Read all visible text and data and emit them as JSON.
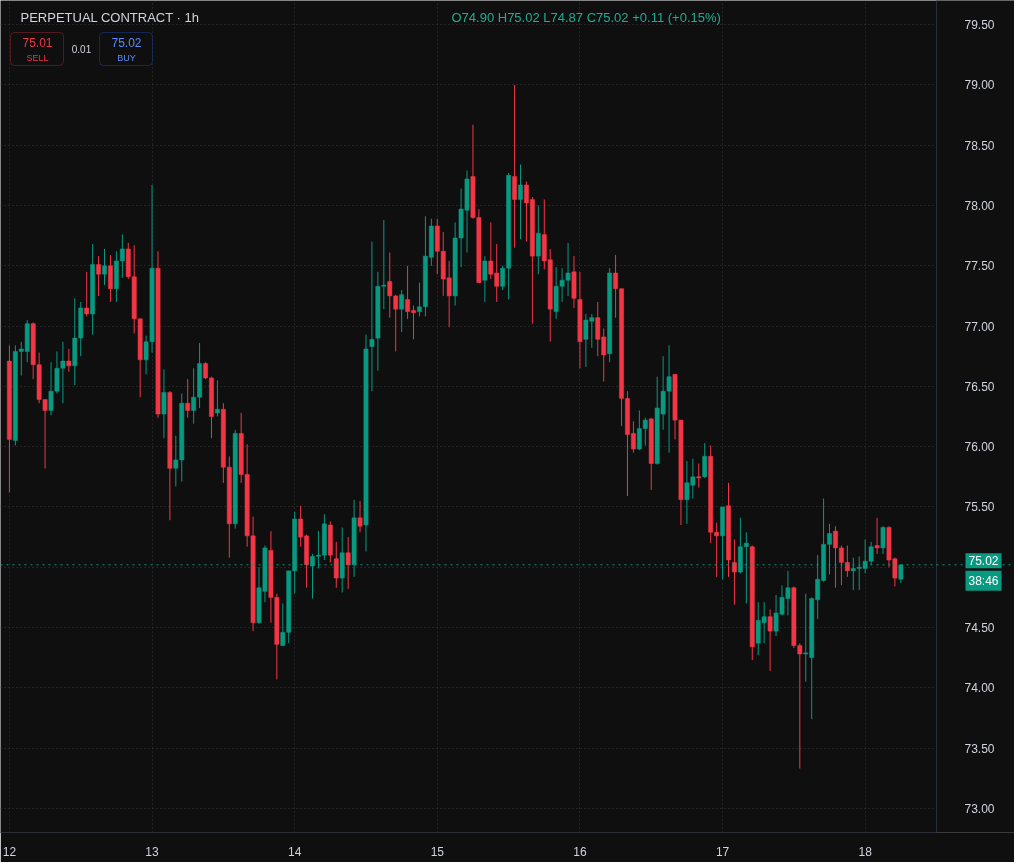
{
  "chart_data": {
    "type": "candlestick",
    "title": "PERPETUAL CONTRACT · 1h",
    "x": [
      12,
      12.0417,
      12.0833,
      12.125,
      12.1667,
      12.2083,
      12.25,
      12.2917,
      12.3333,
      12.375,
      12.4167,
      12.4583,
      12.5,
      12.5417,
      12.5833,
      12.625,
      12.6667,
      12.7083,
      12.75,
      12.7917,
      12.8333,
      12.875,
      12.9167,
      12.9583,
      13,
      13.0417,
      13.0833,
      13.125,
      13.1667,
      13.2083,
      13.25,
      13.2917,
      13.3333,
      13.375,
      13.4167,
      13.4583,
      13.5,
      13.5417,
      13.5833,
      13.625,
      13.6667,
      13.7083,
      13.75,
      13.7917,
      13.8333,
      13.875,
      13.9167,
      13.9583,
      14,
      14.0417,
      14.0833,
      14.125,
      14.1667,
      14.2083,
      14.25,
      14.2917,
      14.3333,
      14.375,
      14.4167,
      14.4583,
      14.5,
      14.5417,
      14.5833,
      14.625,
      14.6667,
      14.7083,
      14.75,
      14.7917,
      14.8333,
      14.875,
      14.9167,
      14.9583,
      15,
      15.0417,
      15.0833,
      15.125,
      15.1667,
      15.2083,
      15.25,
      15.2917,
      15.3333,
      15.375,
      15.4167,
      15.4583,
      15.5,
      15.5417,
      15.5833,
      15.625,
      15.6667,
      15.7083,
      15.75,
      15.7917,
      15.8333,
      15.875,
      15.9167,
      15.9583,
      16,
      16.0417,
      16.0833,
      16.125,
      16.1667,
      16.2083,
      16.25,
      16.2917,
      16.3333,
      16.375,
      16.4167,
      16.4583,
      16.5,
      16.5417,
      16.5833,
      16.625,
      16.6667,
      16.7083,
      16.75,
      16.7917,
      16.8333,
      16.875,
      16.9167,
      16.9583,
      17,
      17.0417,
      17.0833,
      17.125,
      17.1667,
      17.2083,
      17.25,
      17.2917,
      17.3333,
      17.375,
      17.4167,
      17.4583,
      17.5,
      17.5417,
      17.5833,
      17.625,
      17.6667,
      17.7083,
      17.75,
      17.7917,
      17.8333,
      17.875,
      17.9167,
      17.9583,
      18,
      18.0417,
      18.0833,
      18.125,
      18.1667,
      18.2083,
      18.25
    ],
    "ohlc": [
      [
        76.71,
        76.84,
        75.62,
        76.06
      ],
      [
        76.05,
        76.84,
        76.01,
        76.79
      ],
      [
        76.79,
        76.87,
        76.59,
        76.81
      ],
      [
        76.79,
        77.05,
        76.7,
        77.02
      ],
      [
        77.02,
        77.03,
        76.56,
        76.68
      ],
      [
        76.68,
        76.78,
        76.36,
        76.39
      ],
      [
        76.39,
        76.39,
        75.82,
        76.3
      ],
      [
        76.3,
        76.7,
        76.26,
        76.46
      ],
      [
        76.46,
        76.79,
        76.44,
        76.65
      ],
      [
        76.65,
        76.87,
        76.36,
        76.71
      ],
      [
        76.71,
        76.81,
        76.62,
        76.67
      ],
      [
        76.67,
        77.23,
        76.51,
        76.9
      ],
      [
        76.9,
        77.2,
        76.75,
        77.15
      ],
      [
        77.15,
        77.45,
        77.08,
        77.1
      ],
      [
        77.1,
        77.68,
        76.93,
        77.51
      ],
      [
        77.51,
        77.58,
        77.25,
        77.43
      ],
      [
        77.43,
        77.64,
        77.34,
        77.5
      ],
      [
        77.5,
        77.59,
        77.2,
        77.31
      ],
      [
        77.31,
        77.62,
        77.2,
        77.54
      ],
      [
        77.54,
        77.76,
        77.4,
        77.64
      ],
      [
        77.64,
        77.69,
        77.39,
        77.41
      ],
      [
        77.41,
        77.67,
        76.94,
        77.06
      ],
      [
        77.06,
        77.06,
        76.41,
        76.72
      ],
      [
        76.72,
        76.92,
        76.6,
        76.87
      ],
      [
        76.87,
        78.17,
        76.78,
        77.48
      ],
      [
        77.48,
        77.62,
        76.24,
        76.27
      ],
      [
        76.27,
        76.64,
        76.07,
        76.45
      ],
      [
        76.45,
        76.46,
        75.39,
        75.82
      ],
      [
        75.82,
        76.09,
        75.67,
        75.89
      ],
      [
        75.89,
        76.44,
        75.71,
        76.36
      ],
      [
        76.36,
        76.56,
        76.24,
        76.3
      ],
      [
        76.3,
        76.65,
        76.19,
        76.41
      ],
      [
        76.41,
        76.86,
        76.32,
        76.69
      ],
      [
        76.69,
        76.7,
        76.56,
        76.57
      ],
      [
        76.57,
        76.58,
        76.07,
        76.25
      ],
      [
        76.28,
        76.55,
        76.25,
        76.31
      ],
      [
        76.31,
        76.36,
        75.7,
        75.83
      ],
      [
        75.83,
        75.92,
        75.08,
        75.36
      ],
      [
        75.36,
        76.14,
        75.32,
        76.11
      ],
      [
        76.11,
        76.28,
        75.7,
        75.77
      ],
      [
        75.77,
        76.02,
        75.17,
        75.26
      ],
      [
        75.26,
        75.42,
        74.47,
        74.54
      ],
      [
        74.54,
        75.0,
        74.53,
        74.83
      ],
      [
        74.8,
        75.18,
        74.71,
        75.16
      ],
      [
        75.14,
        75.3,
        74.54,
        74.75
      ],
      [
        74.75,
        74.78,
        74.07,
        74.36
      ],
      [
        74.35,
        74.7,
        74.35,
        74.46
      ],
      [
        74.46,
        74.97,
        74.37,
        74.97
      ],
      [
        74.97,
        75.46,
        74.78,
        75.4
      ],
      [
        75.4,
        75.51,
        75.17,
        75.25
      ],
      [
        75.26,
        75.27,
        74.83,
        75.02
      ],
      [
        75.01,
        75.11,
        74.74,
        75.09
      ],
      [
        75.09,
        75.3,
        74.99,
        75.1
      ],
      [
        75.1,
        75.44,
        75.06,
        75.36
      ],
      [
        75.35,
        75.38,
        75.04,
        75.1
      ],
      [
        75.07,
        75.21,
        74.83,
        74.91
      ],
      [
        74.91,
        75.33,
        74.79,
        75.12
      ],
      [
        75.12,
        75.25,
        74.82,
        75.02
      ],
      [
        75.02,
        75.56,
        74.92,
        75.41
      ],
      [
        75.41,
        75.55,
        75.29,
        75.34
      ],
      [
        75.35,
        76.93,
        75.13,
        76.81
      ],
      [
        76.83,
        77.7,
        76.46,
        76.89
      ],
      [
        76.9,
        77.45,
        76.63,
        77.33
      ],
      [
        77.33,
        77.88,
        77.14,
        77.34
      ],
      [
        77.37,
        77.61,
        77.07,
        77.25
      ],
      [
        77.25,
        77.26,
        76.79,
        77.14
      ],
      [
        77.14,
        77.3,
        76.95,
        77.26
      ],
      [
        77.22,
        77.5,
        77.06,
        77.12
      ],
      [
        77.13,
        77.17,
        76.89,
        77.11
      ],
      [
        77.12,
        77.36,
        77.08,
        77.16
      ],
      [
        77.16,
        77.91,
        77.08,
        77.58
      ],
      [
        77.57,
        77.89,
        77.5,
        77.83
      ],
      [
        77.83,
        77.89,
        77.43,
        77.62
      ],
      [
        77.62,
        77.78,
        77.25,
        77.39
      ],
      [
        77.4,
        77.54,
        76.99,
        77.25
      ],
      [
        77.25,
        77.86,
        77.17,
        77.73
      ],
      [
        77.73,
        78.14,
        77.49,
        77.97
      ],
      [
        77.96,
        78.29,
        77.61,
        78.22
      ],
      [
        78.24,
        78.67,
        77.89,
        77.9
      ],
      [
        77.9,
        77.97,
        77.36,
        77.36
      ],
      [
        77.38,
        77.58,
        77.2,
        77.54
      ],
      [
        77.54,
        77.86,
        77.39,
        77.43
      ],
      [
        77.44,
        77.68,
        77.2,
        77.33
      ],
      [
        77.33,
        77.5,
        77.3,
        77.48
      ],
      [
        77.48,
        78.27,
        77.22,
        78.25
      ],
      [
        78.24,
        79.0,
        77.65,
        78.05
      ],
      [
        78.05,
        78.34,
        77.72,
        78.17
      ],
      [
        78.17,
        78.2,
        77.7,
        78.02
      ],
      [
        78.05,
        78.07,
        77.02,
        77.58
      ],
      [
        77.58,
        78.0,
        77.43,
        77.77
      ],
      [
        77.76,
        78.05,
        77.47,
        77.54
      ],
      [
        77.55,
        77.64,
        76.87,
        77.14
      ],
      [
        77.12,
        77.49,
        77.06,
        77.33
      ],
      [
        77.33,
        77.48,
        77.2,
        77.38
      ],
      [
        77.38,
        77.69,
        77.25,
        77.44
      ],
      [
        77.45,
        77.58,
        77.15,
        77.23
      ],
      [
        77.22,
        77.45,
        76.65,
        76.87
      ],
      [
        76.89,
        77.1,
        76.66,
        77.05
      ],
      [
        77.04,
        77.1,
        76.82,
        77.07
      ],
      [
        77.07,
        77.2,
        76.75,
        76.89
      ],
      [
        76.91,
        76.98,
        76.54,
        76.76
      ],
      [
        76.77,
        77.48,
        76.7,
        77.44
      ],
      [
        77.44,
        77.59,
        77.07,
        77.31
      ],
      [
        77.31,
        77.31,
        76.17,
        76.4
      ],
      [
        76.4,
        76.46,
        75.59,
        76.1
      ],
      [
        76.11,
        76.21,
        75.95,
        75.98
      ],
      [
        75.98,
        76.3,
        75.97,
        76.15
      ],
      [
        76.15,
        76.24,
        76.01,
        76.22
      ],
      [
        76.23,
        76.24,
        75.64,
        75.86
      ],
      [
        75.86,
        76.58,
        75.85,
        76.32
      ],
      [
        76.27,
        76.75,
        76.14,
        76.46
      ],
      [
        76.46,
        76.84,
        75.95,
        76.58
      ],
      [
        76.6,
        76.6,
        76.06,
        76.22
      ],
      [
        76.22,
        76.22,
        75.35,
        75.56
      ],
      [
        75.56,
        75.88,
        75.36,
        75.7
      ],
      [
        75.68,
        75.9,
        75.57,
        75.75
      ],
      [
        75.75,
        75.86,
        75.66,
        75.74
      ],
      [
        75.75,
        76.03,
        75.74,
        75.92
      ],
      [
        75.92,
        76.01,
        75.2,
        75.29
      ],
      [
        75.29,
        75.37,
        74.92,
        75.26
      ],
      [
        75.26,
        75.5,
        74.9,
        75.5
      ],
      [
        75.51,
        75.7,
        74.92,
        75.06
      ],
      [
        75.04,
        75.23,
        74.69,
        74.96
      ],
      [
        74.96,
        75.41,
        74.95,
        75.17
      ],
      [
        75.17,
        75.29,
        74.7,
        75.2
      ],
      [
        75.17,
        75.18,
        74.23,
        74.34
      ],
      [
        74.37,
        74.71,
        74.27,
        74.56
      ],
      [
        74.54,
        74.71,
        74.37,
        74.59
      ],
      [
        74.59,
        74.65,
        74.14,
        74.47
      ],
      [
        74.47,
        74.77,
        74.43,
        74.62
      ],
      [
        74.61,
        74.85,
        74.6,
        74.75
      ],
      [
        74.74,
        74.97,
        74.6,
        74.83
      ],
      [
        74.83,
        74.84,
        74.33,
        74.35
      ],
      [
        74.35,
        74.37,
        73.33,
        74.28
      ],
      [
        74.28,
        74.78,
        74.05,
        74.29
      ],
      [
        74.25,
        74.75,
        73.74,
        74.74
      ],
      [
        74.73,
        75.1,
        74.57,
        74.9
      ],
      [
        74.89,
        75.57,
        74.88,
        75.19
      ],
      [
        75.19,
        75.36,
        74.94,
        75.28
      ],
      [
        75.3,
        75.34,
        74.83,
        75.16
      ],
      [
        75.16,
        75.18,
        74.85,
        75.04
      ],
      [
        75.04,
        75.18,
        74.92,
        74.97
      ],
      [
        74.97,
        75.08,
        74.81,
        74.99
      ],
      [
        74.99,
        75.09,
        74.81,
        75.0
      ],
      [
        74.99,
        75.23,
        74.95,
        75.05
      ],
      [
        75.05,
        75.21,
        75.02,
        75.17
      ],
      [
        75.18,
        75.41,
        75.11,
        75.16
      ],
      [
        75.16,
        75.34,
        75.11,
        75.33
      ],
      [
        75.33,
        75.34,
        75.0,
        75.06
      ],
      [
        75.07,
        75.08,
        74.84,
        74.91
      ],
      [
        74.9,
        75.02,
        74.87,
        75.02
      ]
    ],
    "colors": [
      "#f23645",
      "#089981",
      "#089981",
      "#089981",
      "#f23645",
      "#f23645",
      "#f23645",
      "#089981",
      "#089981",
      "#089981",
      "#f23645",
      "#089981",
      "#089981",
      "#f23645",
      "#089981",
      "#f23645",
      "#089981",
      "#f23645",
      "#089981",
      "#089981",
      "#f23645",
      "#f23645",
      "#f23645",
      "#089981",
      "#089981",
      "#f23645",
      "#089981",
      "#f23645",
      "#089981",
      "#089981",
      "#f23645",
      "#089981",
      "#089981",
      "#f23645",
      "#f23645",
      "#089981",
      "#f23645",
      "#f23645",
      "#089981",
      "#f23645",
      "#f23645",
      "#f23645",
      "#089981",
      "#089981",
      "#f23645",
      "#f23645",
      "#089981",
      "#089981",
      "#089981",
      "#f23645",
      "#f23645",
      "#089981",
      "#089981",
      "#089981",
      "#f23645",
      "#f23645",
      "#089981",
      "#f23645",
      "#089981",
      "#f23645",
      "#089981",
      "#089981",
      "#089981",
      "#089981",
      "#f23645",
      "#f23645",
      "#089981",
      "#f23645",
      "#f23645",
      "#089981",
      "#089981",
      "#089981",
      "#f23645",
      "#f23645",
      "#f23645",
      "#089981",
      "#089981",
      "#089981",
      "#f23645",
      "#f23645",
      "#089981",
      "#f23645",
      "#f23645",
      "#089981",
      "#089981",
      "#f23645",
      "#089981",
      "#f23645",
      "#f23645",
      "#089981",
      "#f23645",
      "#f23645",
      "#089981",
      "#089981",
      "#089981",
      "#f23645",
      "#f23645",
      "#089981",
      "#089981",
      "#f23645",
      "#f23645",
      "#089981",
      "#f23645",
      "#f23645",
      "#f23645",
      "#f23645",
      "#089981",
      "#089981",
      "#f23645",
      "#089981",
      "#089981",
      "#089981",
      "#f23645",
      "#f23645",
      "#089981",
      "#089981",
      "#f23645",
      "#089981",
      "#f23645",
      "#f23645",
      "#089981",
      "#f23645",
      "#f23645",
      "#089981",
      "#089981",
      "#f23645",
      "#089981",
      "#089981",
      "#f23645",
      "#089981",
      "#089981",
      "#089981",
      "#f23645",
      "#f23645",
      "#089981",
      "#089981",
      "#089981",
      "#089981",
      "#089981",
      "#f23645",
      "#f23645",
      "#f23645",
      "#089981",
      "#089981",
      "#089981",
      "#089981",
      "#f23645",
      "#089981",
      "#f23645",
      "#f23645",
      "#089981"
    ],
    "xlim": [
      11.9375,
      18.5
    ],
    "xticks": [
      12,
      13,
      14,
      15,
      16,
      17,
      18
    ],
    "ylim": [
      72.8,
      79.7
    ],
    "yticks": [
      {
        "value": 73,
        "label": "73.00"
      },
      {
        "value": 73.5,
        "label": "73.50"
      },
      {
        "value": 74,
        "label": "74.00"
      },
      {
        "value": 74.5,
        "label": "74.50"
      },
      {
        "value": 75,
        "label": null
      },
      {
        "value": 75.5,
        "label": "75.50"
      },
      {
        "value": 76,
        "label": "76.00"
      },
      {
        "value": 76.5,
        "label": "76.50"
      },
      {
        "value": 77,
        "label": "77.00"
      },
      {
        "value": 77.5,
        "label": "77.50"
      },
      {
        "value": 78,
        "label": "78.00"
      },
      {
        "value": 78.5,
        "label": "78.50"
      },
      {
        "value": 79,
        "label": "79.00"
      },
      {
        "value": 79.5,
        "label": "79.50"
      }
    ],
    "grid": true,
    "ref_lines": [
      {
        "axis": "y",
        "value": 75.02,
        "label": "75.02",
        "color": "#089981",
        "line_style": "dotted"
      }
    ],
    "annotations": [
      "O74.90 H75.02 L74.87 C75.02 +0.11 (+0.15%)",
      "75.01",
      "SELL",
      "0.01",
      "75.02",
      "BUY",
      "38:46"
    ]
  }
}
